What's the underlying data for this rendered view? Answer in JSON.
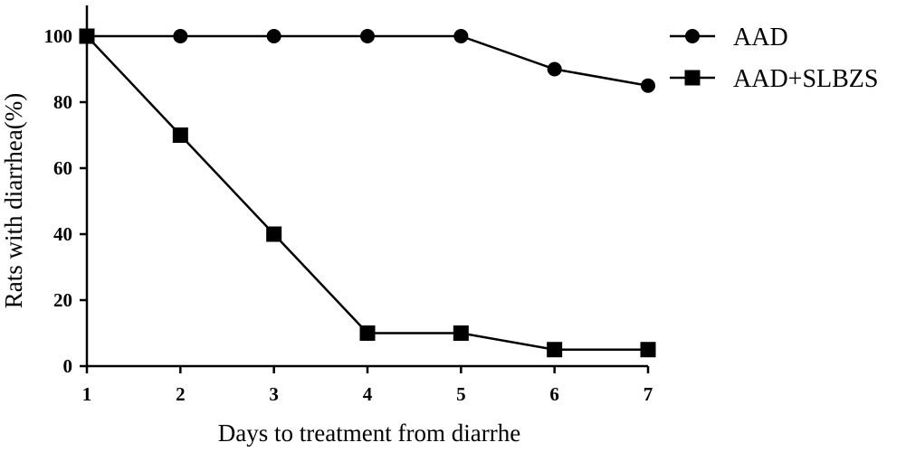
{
  "chart_data": {
    "type": "line",
    "title": "",
    "xlabel": "Days to treatment from diarrhe",
    "ylabel": "Rats with diarrhea(%)",
    "x": [
      1,
      2,
      3,
      4,
      5,
      6,
      7
    ],
    "x_tick_labels": [
      "1",
      "2",
      "3",
      "4",
      "5",
      "6",
      "7"
    ],
    "y_tick_values": [
      0,
      20,
      40,
      60,
      80,
      100
    ],
    "y_tick_labels": [
      "0",
      "20",
      "40",
      "60",
      "80",
      "100"
    ],
    "xlim": [
      1,
      7
    ],
    "ylim": [
      0,
      110
    ],
    "grid": false,
    "legend_position": "top-right",
    "series": [
      {
        "name": "AAD",
        "marker": "circle",
        "values": [
          100,
          100,
          100,
          100,
          100,
          90,
          85
        ]
      },
      {
        "name": "AAD+SLBZS",
        "marker": "square",
        "values": [
          100,
          70,
          40,
          10,
          10,
          5,
          5
        ]
      }
    ],
    "colors": {
      "line": "#000000",
      "marker": "#000000",
      "background": "#ffffff"
    }
  }
}
